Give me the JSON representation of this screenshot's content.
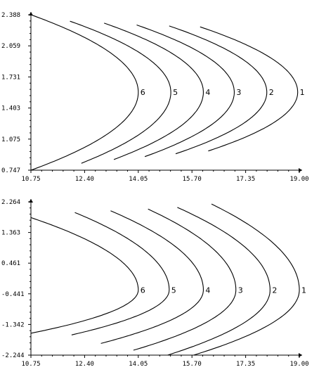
{
  "chart_data": [
    {
      "type": "line",
      "title": "",
      "xlabel": "",
      "ylabel": "",
      "xlim": [
        10.75,
        19.0
      ],
      "ylim": [
        0.747,
        2.388
      ],
      "x_ticks": [
        "10.75",
        "12.40",
        "14.05",
        "15.70",
        "17.35",
        "19.00"
      ],
      "y_ticks": [
        "0.747",
        "1.075",
        "1.403",
        "1.731",
        "2.059",
        "2.388"
      ],
      "grid": false,
      "series": [
        {
          "name": "1",
          "vertex": [
            18.95,
            1.57
          ],
          "top": [
            15.95,
            2.26
          ],
          "bottom": [
            16.2,
            0.95
          ]
        },
        {
          "name": "2",
          "vertex": [
            18.0,
            1.57
          ],
          "top": [
            15.0,
            2.27
          ],
          "bottom": [
            15.2,
            0.92
          ]
        },
        {
          "name": "3",
          "vertex": [
            17.0,
            1.57
          ],
          "top": [
            14.0,
            2.28
          ],
          "bottom": [
            14.25,
            0.89
          ]
        },
        {
          "name": "4",
          "vertex": [
            16.05,
            1.57
          ],
          "top": [
            13.0,
            2.3
          ],
          "bottom": [
            13.3,
            0.86
          ]
        },
        {
          "name": "5",
          "vertex": [
            15.05,
            1.57
          ],
          "top": [
            11.95,
            2.32
          ],
          "bottom": [
            12.3,
            0.82
          ]
        },
        {
          "name": "6",
          "vertex": [
            14.05,
            1.57
          ],
          "top": [
            10.75,
            2.388
          ],
          "bottom": [
            10.75,
            0.747
          ]
        }
      ]
    },
    {
      "type": "line",
      "title": "",
      "xlabel": "",
      "ylabel": "",
      "xlim": [
        10.75,
        19.0
      ],
      "ylim": [
        -2.244,
        2.264
      ],
      "x_ticks": [
        "10.75",
        "12.40",
        "14.05",
        "15.70",
        "17.35",
        "19.00"
      ],
      "y_ticks": [
        "-2.244",
        "-1.342",
        "-0.441",
        "0.461",
        "1.363",
        "2.264"
      ],
      "grid": false,
      "series": [
        {
          "name": "1",
          "vertex": [
            19.0,
            -0.33
          ],
          "top": [
            16.3,
            2.2
          ],
          "bottom": [
            15.75,
            -2.244
          ]
        },
        {
          "name": "2",
          "vertex": [
            18.1,
            -0.33
          ],
          "top": [
            15.25,
            2.1
          ],
          "bottom": [
            14.95,
            -2.244
          ]
        },
        {
          "name": "3",
          "vertex": [
            17.05,
            -0.33
          ],
          "top": [
            14.35,
            2.05
          ],
          "bottom": [
            13.9,
            -2.1
          ]
        },
        {
          "name": "4",
          "vertex": [
            16.05,
            -0.33
          ],
          "top": [
            13.2,
            2.0
          ],
          "bottom": [
            12.9,
            -1.9
          ]
        },
        {
          "name": "5",
          "vertex": [
            15.0,
            -0.33
          ],
          "top": [
            12.1,
            1.95
          ],
          "bottom": [
            12.0,
            -1.65
          ]
        },
        {
          "name": "6",
          "vertex": [
            14.05,
            -0.33
          ],
          "top": [
            10.75,
            1.8
          ],
          "bottom": [
            10.75,
            -1.6
          ]
        }
      ]
    }
  ]
}
